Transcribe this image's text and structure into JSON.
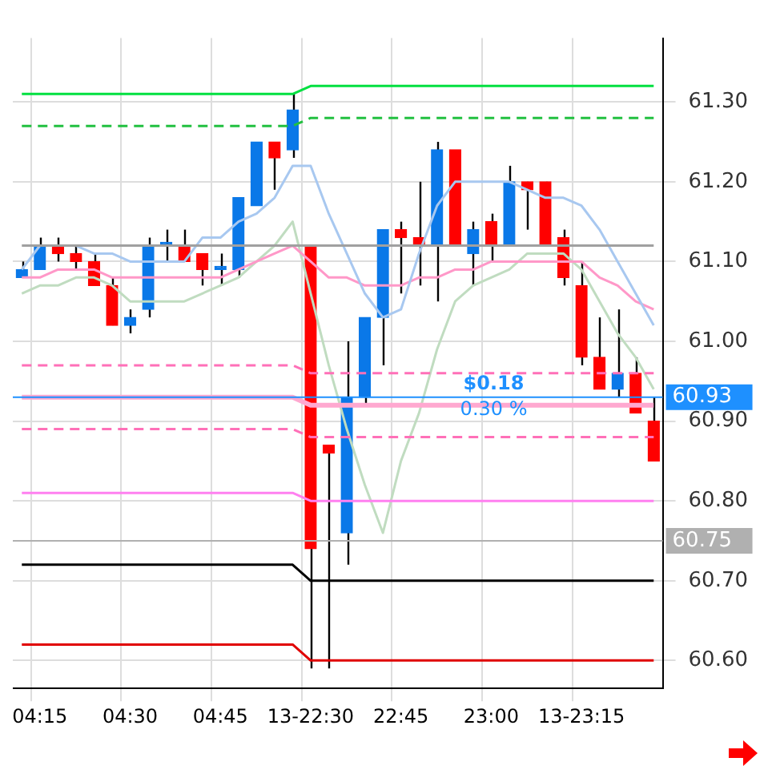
{
  "chart_data": {
    "type": "candlestick",
    "categories": [
      null,
      "04:15",
      null,
      null,
      null,
      null,
      "04:30",
      null,
      null,
      null,
      null,
      "04:45",
      null,
      null,
      null,
      null,
      "13-22:30",
      null,
      null,
      null,
      null,
      "22:45",
      null,
      null,
      null,
      null,
      "23:00",
      null,
      null,
      null,
      null,
      "13-23:15",
      null,
      null,
      null,
      null
    ],
    "ohlc": [
      [
        61.08,
        61.1,
        61.08,
        61.09
      ],
      [
        61.09,
        61.13,
        61.09,
        61.12
      ],
      [
        61.12,
        61.13,
        61.1,
        61.11
      ],
      [
        61.11,
        61.12,
        61.09,
        61.1
      ],
      [
        61.1,
        61.11,
        61.07,
        61.07
      ],
      [
        61.07,
        61.08,
        61.02,
        61.02
      ],
      [
        61.02,
        61.04,
        61.01,
        61.03
      ],
      [
        61.04,
        61.13,
        61.03,
        61.12
      ],
      [
        61.12,
        61.14,
        61.1,
        61.12
      ],
      [
        61.12,
        61.14,
        61.1,
        61.1
      ],
      [
        61.11,
        61.11,
        61.07,
        61.09
      ],
      [
        61.09,
        61.11,
        61.07,
        61.09
      ],
      [
        61.09,
        61.18,
        61.08,
        61.18
      ],
      [
        61.17,
        61.25,
        61.17,
        61.25
      ],
      [
        61.25,
        61.25,
        61.19,
        61.23
      ],
      [
        61.24,
        61.31,
        61.23,
        61.29
      ],
      [
        61.12,
        61.12,
        60.59,
        60.74
      ],
      [
        60.87,
        60.87,
        60.59,
        60.86
      ],
      [
        60.76,
        61.0,
        60.72,
        60.93
      ],
      [
        60.93,
        61.03,
        60.92,
        61.03
      ],
      [
        61.03,
        61.14,
        60.97,
        61.14
      ],
      [
        61.14,
        61.15,
        61.06,
        61.13
      ],
      [
        61.13,
        61.2,
        61.07,
        61.12
      ],
      [
        61.12,
        61.25,
        61.05,
        61.24
      ],
      [
        61.24,
        61.24,
        61.12,
        61.12
      ],
      [
        61.11,
        61.15,
        61.07,
        61.14
      ],
      [
        61.15,
        61.16,
        61.1,
        61.12
      ],
      [
        61.12,
        61.22,
        61.12,
        61.2
      ],
      [
        61.2,
        61.2,
        61.14,
        61.19
      ],
      [
        61.2,
        61.2,
        61.12,
        61.12
      ],
      [
        61.13,
        61.14,
        61.07,
        61.08
      ],
      [
        61.07,
        61.1,
        60.97,
        60.98
      ],
      [
        60.98,
        61.03,
        60.94,
        60.94
      ],
      [
        60.94,
        61.04,
        60.93,
        60.96
      ],
      [
        60.96,
        60.98,
        60.91,
        60.91
      ],
      [
        60.9,
        60.93,
        60.85,
        60.85
      ]
    ],
    "colors": [
      "#0a78e8",
      "#0a78e8",
      "#ff0000",
      "#ff0000",
      "#ff0000",
      "#ff0000",
      "#0a78e8",
      "#0a78e8",
      "#0a78e8",
      "#ff0000",
      "#ff0000",
      "#0a78e8",
      "#0a78e8",
      "#0a78e8",
      "#ff0000",
      "#0a78e8",
      "#ff0000",
      "#ff0000",
      "#0a78e8",
      "#0a78e8",
      "#0a78e8",
      "#ff0000",
      "#ff0000",
      "#0a78e8",
      "#ff0000",
      "#0a78e8",
      "#ff0000",
      "#0a78e8",
      "#ff0000",
      "#ff0000",
      "#ff0000",
      "#ff0000",
      "#ff0000",
      "#0a78e8",
      "#ff0000",
      "#ff0000"
    ],
    "series": [
      {
        "type": "line",
        "color": "#00e040",
        "line_style": "solid",
        "values": [
          61.31,
          61.31,
          61.31,
          61.31,
          61.31,
          61.31,
          61.31,
          61.31,
          61.31,
          61.31,
          61.31,
          61.31,
          61.31,
          61.31,
          61.31,
          61.31,
          61.32,
          61.32,
          61.32,
          61.32,
          61.32,
          61.32,
          61.32,
          61.32,
          61.32,
          61.32,
          61.32,
          61.32,
          61.32,
          61.32,
          61.32,
          61.32,
          61.32,
          61.32,
          61.32,
          61.32
        ]
      },
      {
        "type": "line",
        "color": "#22c040",
        "line_style": "dashed",
        "values": [
          61.27,
          61.27,
          61.27,
          61.27,
          61.27,
          61.27,
          61.27,
          61.27,
          61.27,
          61.27,
          61.27,
          61.27,
          61.27,
          61.27,
          61.27,
          61.27,
          61.28,
          61.28,
          61.28,
          61.28,
          61.28,
          61.28,
          61.28,
          61.28,
          61.28,
          61.28,
          61.28,
          61.28,
          61.28,
          61.28,
          61.28,
          61.28,
          61.28,
          61.28,
          61.28,
          61.28
        ]
      },
      {
        "type": "line",
        "color": "#a0a0a0",
        "line_style": "solid",
        "values": [
          61.12,
          61.12,
          61.12,
          61.12,
          61.12,
          61.12,
          61.12,
          61.12,
          61.12,
          61.12,
          61.12,
          61.12,
          61.12,
          61.12,
          61.12,
          61.12,
          61.12,
          61.12,
          61.12,
          61.12,
          61.12,
          61.12,
          61.12,
          61.12,
          61.12,
          61.12,
          61.12,
          61.12,
          61.12,
          61.12,
          61.12,
          61.12,
          61.12,
          61.12,
          61.12,
          61.12
        ]
      },
      {
        "type": "line",
        "color": "#ff70b8",
        "line_style": "dashed",
        "values": [
          60.97,
          60.97,
          60.97,
          60.97,
          60.97,
          60.97,
          60.97,
          60.97,
          60.97,
          60.97,
          60.97,
          60.97,
          60.97,
          60.97,
          60.97,
          60.97,
          60.96,
          60.96,
          60.96,
          60.96,
          60.96,
          60.96,
          60.96,
          60.96,
          60.96,
          60.96,
          60.96,
          60.96,
          60.96,
          60.96,
          60.96,
          60.96,
          60.96,
          60.96,
          60.96,
          60.96
        ]
      },
      {
        "type": "line",
        "color": "#ffa8d0",
        "line_style": "solid",
        "values": [
          60.93,
          60.93,
          60.93,
          60.93,
          60.93,
          60.93,
          60.93,
          60.93,
          60.93,
          60.93,
          60.93,
          60.93,
          60.93,
          60.93,
          60.93,
          60.93,
          60.92,
          60.92,
          60.92,
          60.92,
          60.92,
          60.92,
          60.92,
          60.92,
          60.92,
          60.92,
          60.92,
          60.92,
          60.92,
          60.92,
          60.92,
          60.92,
          60.92,
          60.92,
          60.92,
          60.92
        ]
      },
      {
        "type": "line",
        "color": "#ff70b8",
        "line_style": "dashed",
        "values": [
          60.89,
          60.89,
          60.89,
          60.89,
          60.89,
          60.89,
          60.89,
          60.89,
          60.89,
          60.89,
          60.89,
          60.89,
          60.89,
          60.89,
          60.89,
          60.89,
          60.88,
          60.88,
          60.88,
          60.88,
          60.88,
          60.88,
          60.88,
          60.88,
          60.88,
          60.88,
          60.88,
          60.88,
          60.88,
          60.88,
          60.88,
          60.88,
          60.88,
          60.88,
          60.88,
          60.88
        ]
      },
      {
        "type": "line",
        "color": "#ff80f0",
        "line_style": "solid",
        "values": [
          60.81,
          60.81,
          60.81,
          60.81,
          60.81,
          60.81,
          60.81,
          60.81,
          60.81,
          60.81,
          60.81,
          60.81,
          60.81,
          60.81,
          60.81,
          60.81,
          60.8,
          60.8,
          60.8,
          60.8,
          60.8,
          60.8,
          60.8,
          60.8,
          60.8,
          60.8,
          60.8,
          60.8,
          60.8,
          60.8,
          60.8,
          60.8,
          60.8,
          60.8,
          60.8,
          60.8
        ]
      },
      {
        "type": "line",
        "color": "#000000",
        "line_style": "solid",
        "values": [
          60.72,
          60.72,
          60.72,
          60.72,
          60.72,
          60.72,
          60.72,
          60.72,
          60.72,
          60.72,
          60.72,
          60.72,
          60.72,
          60.72,
          60.72,
          60.72,
          60.7,
          60.7,
          60.7,
          60.7,
          60.7,
          60.7,
          60.7,
          60.7,
          60.7,
          60.7,
          60.7,
          60.7,
          60.7,
          60.7,
          60.7,
          60.7,
          60.7,
          60.7,
          60.7,
          60.7
        ]
      },
      {
        "type": "line",
        "color": "#e00000",
        "line_style": "solid",
        "values": [
          60.62,
          60.62,
          60.62,
          60.62,
          60.62,
          60.62,
          60.62,
          60.62,
          60.62,
          60.62,
          60.62,
          60.62,
          60.62,
          60.62,
          60.62,
          60.62,
          60.6,
          60.6,
          60.6,
          60.6,
          60.6,
          60.6,
          60.6,
          60.6,
          60.6,
          60.6,
          60.6,
          60.6,
          60.6,
          60.6,
          60.6,
          60.6,
          60.6,
          60.6,
          60.6,
          60.6
        ]
      },
      {
        "type": "line",
        "color": "#a8c8f0",
        "line_style": "solid",
        "values": [
          61.09,
          61.12,
          61.12,
          61.12,
          61.11,
          61.11,
          61.1,
          61.1,
          61.1,
          61.1,
          61.13,
          61.13,
          61.15,
          61.16,
          61.18,
          61.22,
          61.22,
          61.16,
          61.11,
          61.06,
          61.03,
          61.04,
          61.11,
          61.17,
          61.2,
          61.2,
          61.2,
          61.2,
          61.19,
          61.18,
          61.18,
          61.17,
          61.14,
          61.1,
          61.06,
          61.02
        ]
      },
      {
        "type": "line",
        "color": "#ff98c8",
        "line_style": "solid",
        "values": [
          61.08,
          61.08,
          61.09,
          61.09,
          61.09,
          61.08,
          61.08,
          61.08,
          61.08,
          61.08,
          61.08,
          61.08,
          61.09,
          61.1,
          61.11,
          61.12,
          61.1,
          61.08,
          61.08,
          61.07,
          61.07,
          61.07,
          61.08,
          61.08,
          61.09,
          61.09,
          61.1,
          61.1,
          61.1,
          61.1,
          61.1,
          61.1,
          61.08,
          61.07,
          61.05,
          61.04
        ]
      },
      {
        "type": "line",
        "color": "#c0dcc0",
        "line_style": "solid",
        "values": [
          61.06,
          61.07,
          61.07,
          61.08,
          61.08,
          61.07,
          61.05,
          61.05,
          61.05,
          61.05,
          61.06,
          61.07,
          61.08,
          61.1,
          61.12,
          61.15,
          61.06,
          60.97,
          60.89,
          60.82,
          60.76,
          60.85,
          60.91,
          60.99,
          61.05,
          61.07,
          61.08,
          61.09,
          61.11,
          61.11,
          61.11,
          61.09,
          61.05,
          61.01,
          60.98,
          60.94
        ]
      }
    ],
    "ref_lines": [
      {
        "axis": "y",
        "value": 60.93,
        "label": "60.93",
        "color": "#1e90ff"
      },
      {
        "axis": "y",
        "value": 60.75,
        "label": "60.75",
        "color": "#b0b0b0"
      }
    ],
    "annotations": [
      "$0.18",
      "0.30 %"
    ],
    "ylim": [
      60.565,
      61.38
    ],
    "yticks": [
      {
        "value": 60.6,
        "label": "60.60"
      },
      {
        "value": 60.7,
        "label": "60.70"
      },
      {
        "value": 60.8,
        "label": "60.80"
      },
      {
        "value": 60.9,
        "label": "60.90"
      },
      {
        "value": 61.0,
        "label": "61.00"
      },
      {
        "value": 61.1,
        "label": "61.10"
      },
      {
        "value": 61.2,
        "label": "61.20"
      },
      {
        "value": 61.3,
        "label": "61.30"
      }
    ],
    "grid": true,
    "legend": false
  }
}
